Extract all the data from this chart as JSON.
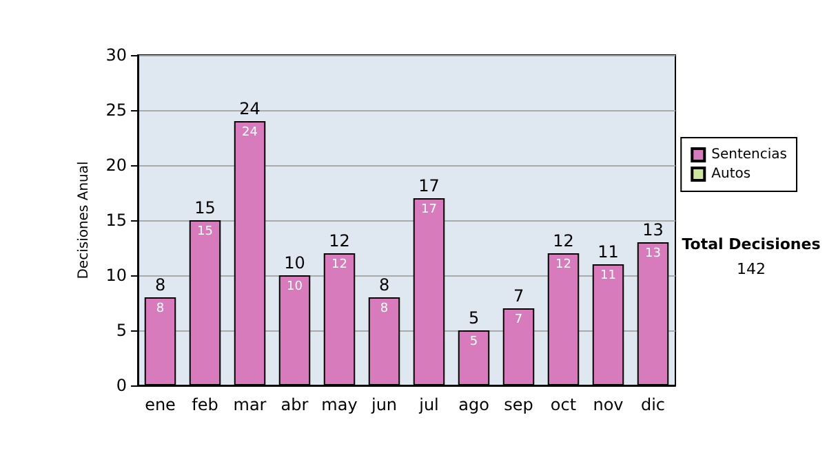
{
  "chart_data": {
    "type": "bar",
    "stacked": true,
    "ylabel": "Decisiones Anual",
    "categories": [
      "ene",
      "feb",
      "mar",
      "abr",
      "may",
      "jun",
      "jul",
      "ago",
      "sep",
      "oct",
      "nov",
      "dic"
    ],
    "series": [
      {
        "name": "Sentencias",
        "color": "#d87bbd",
        "values": [
          8,
          15,
          24,
          10,
          12,
          8,
          17,
          5,
          7,
          12,
          11,
          13
        ],
        "value_labels": [
          "8",
          "15",
          "24",
          "10",
          "12",
          "8",
          "17",
          "5",
          "7",
          "12",
          "11",
          "13"
        ]
      },
      {
        "name": "Autos",
        "color": "#cce6a0",
        "values": [
          null,
          null,
          null,
          null,
          null,
          null,
          null,
          null,
          null,
          null,
          null,
          null
        ]
      }
    ],
    "totals": [
      "8",
      "15",
      "24",
      "10",
      "12",
      "8",
      "17",
      "5",
      "7",
      "12",
      "11",
      "13"
    ],
    "ylim": [
      0,
      30
    ],
    "yticks": [
      0,
      5,
      10,
      15,
      20,
      25,
      30
    ],
    "grid": "y",
    "legend": "right",
    "annotations": [
      "Total Decisiones",
      "142"
    ]
  }
}
